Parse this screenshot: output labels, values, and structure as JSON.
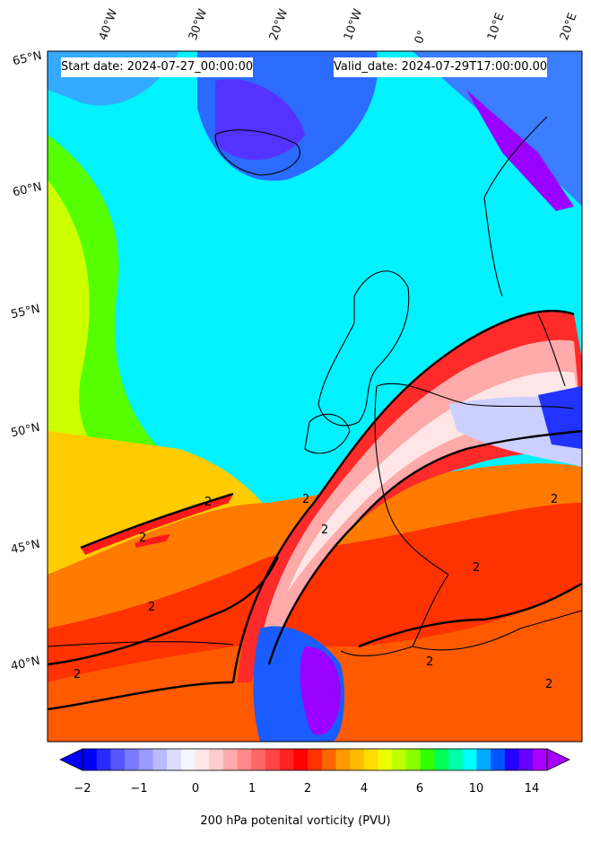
{
  "header": {
    "start_label": "Start date: 2024-07-27_00:00:00",
    "valid_label": "Valid_date: 2024-07-29T17:00:00.00"
  },
  "longitude_labels": [
    "40°W",
    "30°W",
    "20°W",
    "10°W",
    "0°",
    "10°E",
    "20°E"
  ],
  "latitude_labels": [
    "65°N",
    "60°N",
    "55°N",
    "50°N",
    "45°N",
    "40°N"
  ],
  "contour_label": "2",
  "colorbar": {
    "title": "200 hPa potenital vorticity (PVU)",
    "tick_labels": [
      "−2",
      "−1",
      "0",
      "1",
      "2",
      "4",
      "6",
      "10",
      "14"
    ],
    "colors": [
      "#0000ff",
      "#2a2aff",
      "#5555ff",
      "#7a7aff",
      "#9999ff",
      "#bbbbff",
      "#dcdcff",
      "#f5f5ff",
      "#ffe6e6",
      "#ffcccc",
      "#ffaaaa",
      "#ff8888",
      "#ff6666",
      "#ff4444",
      "#ff2222",
      "#ff0000",
      "#ff3300",
      "#ff6600",
      "#ff9900",
      "#ffbb00",
      "#ffdd00",
      "#eeff00",
      "#bbff00",
      "#88ff00",
      "#33ff00",
      "#00ff55",
      "#00ffaa",
      "#00ffff",
      "#00aaff",
      "#0055ff",
      "#2200ff",
      "#6600ff",
      "#aa00ff"
    ]
  }
}
